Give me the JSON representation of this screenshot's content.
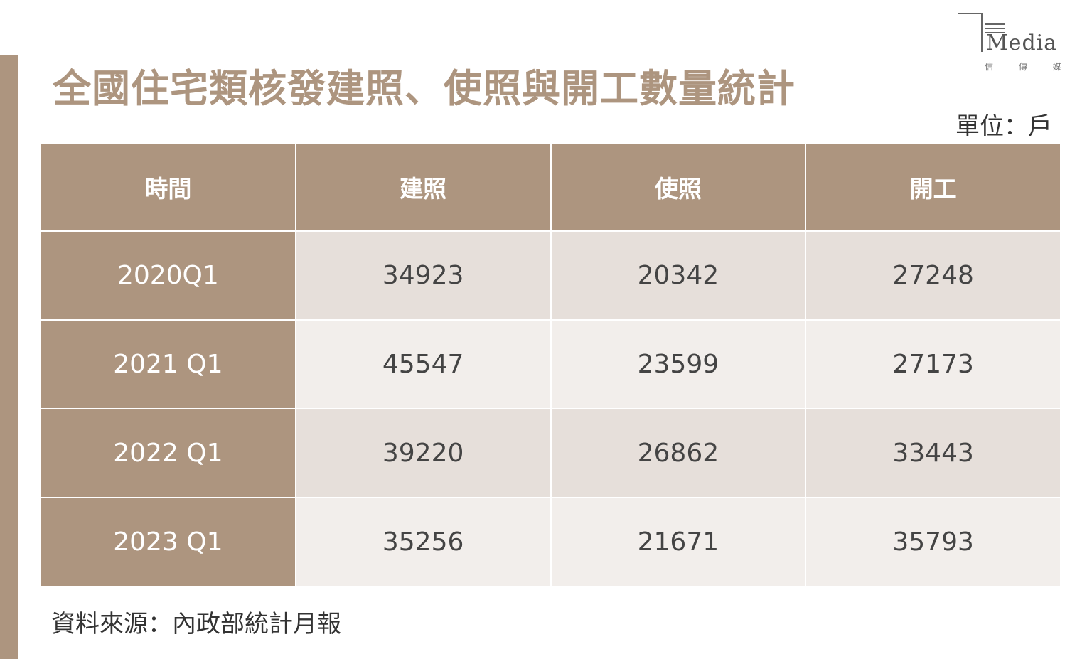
{
  "title": "全國住宅類核發建照、使照與開工數量統計",
  "unit": "單位：戶",
  "logo": {
    "text": "Media",
    "chinese": "信 傳 媒"
  },
  "source": "資料來源：內政部統計月報",
  "colors": {
    "accent": "#ad957f",
    "row_dark": "#e6dfda",
    "row_light": "#f2eeeb"
  },
  "chart_data": {
    "type": "table",
    "columns": [
      "時間",
      "建照",
      "使照",
      "開工"
    ],
    "rows": [
      [
        "2020Q1",
        "34923",
        "20342",
        "27248"
      ],
      [
        "2021 Q1",
        "45547",
        "23599",
        "27173"
      ],
      [
        "2022 Q1",
        "39220",
        "26862",
        "33443"
      ],
      [
        "2023 Q1",
        "35256",
        "21671",
        "35793"
      ]
    ]
  }
}
